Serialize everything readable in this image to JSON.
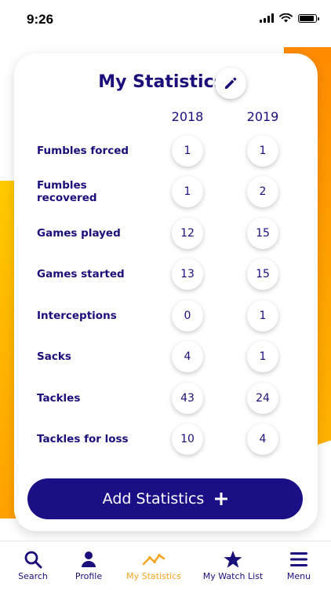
{
  "status_bar": {
    "time": "9:26"
  },
  "card": {
    "title": "My Statistics",
    "years": [
      "2018",
      "2019"
    ],
    "rows": [
      {
        "label": "Fumbles forced",
        "v2018": "1",
        "v2019": "1"
      },
      {
        "label": "Fumbles recovered",
        "v2018": "1",
        "v2019": "2"
      },
      {
        "label": "Games played",
        "v2018": "12",
        "v2019": "15"
      },
      {
        "label": "Games started",
        "v2018": "13",
        "v2019": "15"
      },
      {
        "label": "Interceptions",
        "v2018": "0",
        "v2019": "1"
      },
      {
        "label": "Sacks",
        "v2018": "4",
        "v2019": "1"
      },
      {
        "label": "Tackles",
        "v2018": "43",
        "v2019": "24"
      },
      {
        "label": "Tackles for loss",
        "v2018": "10",
        "v2019": "4"
      }
    ],
    "add_button_label": "Add Statistics"
  },
  "tabbar": {
    "items": [
      {
        "label": "Search",
        "icon": "search-icon"
      },
      {
        "label": "Profile",
        "icon": "person-icon"
      },
      {
        "label": "My Statistics",
        "icon": "trend-line-icon",
        "active": true
      },
      {
        "label": "My Watch List",
        "icon": "star-icon"
      },
      {
        "label": "Menu",
        "icon": "hamburger-menu-icon"
      }
    ]
  },
  "colors": {
    "primary": "#1a0f7a",
    "button": "#1a0f85",
    "accent": "#f5a623",
    "stripe_orange": "#ff8a00",
    "stripe_yellow": "#ffcc00"
  }
}
